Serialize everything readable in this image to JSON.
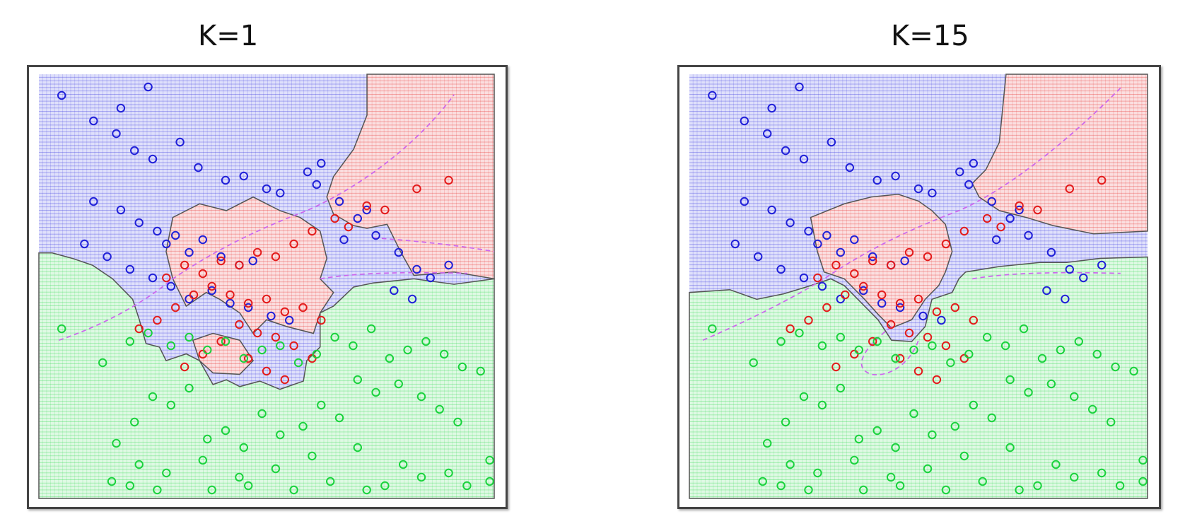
{
  "colors": {
    "blue": "#1f1fd8",
    "red": "#e31a1a",
    "green": "#19d23c",
    "blue_fill": "#dfe0fb",
    "red_fill": "#fbdfe0",
    "green_fill": "#dff9e4",
    "boundary": "#555555",
    "bayes": "#cc66ee"
  },
  "chart_data": [
    {
      "type": "scatter",
      "title": "K=1",
      "xlim": [
        0,
        1
      ],
      "ylim": [
        0,
        1
      ],
      "classes": [
        "blue",
        "red",
        "green"
      ],
      "series": [
        {
          "class": "blue",
          "x": [
            0.05,
            0.18,
            0.24,
            0.12,
            0.17,
            0.21,
            0.25,
            0.31,
            0.35,
            0.41,
            0.45,
            0.5,
            0.53,
            0.59,
            0.61,
            0.62,
            0.66,
            0.7,
            0.72,
            0.12,
            0.18,
            0.22,
            0.26,
            0.28,
            0.3,
            0.33,
            0.36,
            0.4,
            0.44,
            0.47,
            0.1,
            0.15,
            0.2,
            0.25,
            0.29,
            0.33,
            0.38,
            0.42,
            0.46,
            0.51,
            0.55,
            0.67,
            0.74,
            0.79,
            0.83,
            0.86,
            0.9,
            0.78,
            0.82
          ],
          "y": [
            0.95,
            0.92,
            0.97,
            0.89,
            0.86,
            0.82,
            0.8,
            0.84,
            0.78,
            0.75,
            0.76,
            0.73,
            0.72,
            0.77,
            0.74,
            0.79,
            0.7,
            0.66,
            0.68,
            0.7,
            0.68,
            0.65,
            0.63,
            0.6,
            0.62,
            0.58,
            0.61,
            0.57,
            0.55,
            0.56,
            0.6,
            0.57,
            0.54,
            0.52,
            0.5,
            0.47,
            0.49,
            0.46,
            0.45,
            0.43,
            0.42,
            0.61,
            0.62,
            0.58,
            0.54,
            0.52,
            0.55,
            0.49,
            0.47
          ]
        },
        {
          "class": "red",
          "x": [
            0.9,
            0.83,
            0.76,
            0.72,
            0.68,
            0.65,
            0.6,
            0.56,
            0.52,
            0.48,
            0.44,
            0.4,
            0.36,
            0.32,
            0.28,
            0.38,
            0.42,
            0.46,
            0.5,
            0.54,
            0.58,
            0.62,
            0.34,
            0.3,
            0.26,
            0.22,
            0.44,
            0.48,
            0.52,
            0.56,
            0.6,
            0.4,
            0.36,
            0.32,
            0.46,
            0.5,
            0.54
          ],
          "y": [
            0.75,
            0.73,
            0.68,
            0.69,
            0.64,
            0.66,
            0.63,
            0.6,
            0.57,
            0.58,
            0.55,
            0.56,
            0.53,
            0.55,
            0.52,
            0.5,
            0.48,
            0.46,
            0.47,
            0.44,
            0.45,
            0.42,
            0.48,
            0.45,
            0.42,
            0.4,
            0.41,
            0.39,
            0.38,
            0.36,
            0.33,
            0.37,
            0.34,
            0.31,
            0.33,
            0.3,
            0.28
          ]
        },
        {
          "class": "green",
          "x": [
            0.05,
            0.14,
            0.2,
            0.24,
            0.29,
            0.33,
            0.37,
            0.41,
            0.45,
            0.49,
            0.53,
            0.57,
            0.61,
            0.65,
            0.69,
            0.73,
            0.77,
            0.81,
            0.85,
            0.89,
            0.93,
            0.97,
            0.7,
            0.74,
            0.79,
            0.84,
            0.88,
            0.92,
            0.62,
            0.66,
            0.58,
            0.53,
            0.49,
            0.45,
            0.41,
            0.37,
            0.33,
            0.29,
            0.25,
            0.21,
            0.17,
            0.22,
            0.28,
            0.36,
            0.44,
            0.52,
            0.6,
            0.7,
            0.8,
            0.9,
            0.99,
            0.99,
            0.16,
            0.2,
            0.26,
            0.38,
            0.46,
            0.56,
            0.64,
            0.72,
            0.76,
            0.84,
            0.94
          ],
          "y": [
            0.4,
            0.32,
            0.37,
            0.39,
            0.36,
            0.38,
            0.35,
            0.37,
            0.33,
            0.35,
            0.36,
            0.32,
            0.34,
            0.38,
            0.36,
            0.4,
            0.33,
            0.35,
            0.37,
            0.34,
            0.31,
            0.3,
            0.28,
            0.25,
            0.27,
            0.24,
            0.21,
            0.18,
            0.22,
            0.19,
            0.17,
            0.15,
            0.2,
            0.12,
            0.16,
            0.14,
            0.26,
            0.22,
            0.24,
            0.18,
            0.13,
            0.08,
            0.06,
            0.09,
            0.05,
            0.07,
            0.1,
            0.12,
            0.08,
            0.06,
            0.09,
            0.04,
            0.04,
            0.03,
            0.02,
            0.02,
            0.03,
            0.02,
            0.04,
            0.02,
            0.03,
            0.05,
            0.03
          ]
        }
      ]
    },
    {
      "type": "scatter",
      "title": "K=15",
      "xlim": [
        0,
        1
      ],
      "ylim": [
        0,
        1
      ],
      "classes": [
        "blue",
        "red",
        "green"
      ],
      "series": [
        {
          "class": "blue",
          "x": [
            0.05,
            0.18,
            0.24,
            0.12,
            0.17,
            0.21,
            0.25,
            0.31,
            0.35,
            0.41,
            0.45,
            0.5,
            0.53,
            0.59,
            0.61,
            0.62,
            0.66,
            0.7,
            0.72,
            0.12,
            0.18,
            0.22,
            0.26,
            0.28,
            0.3,
            0.33,
            0.36,
            0.4,
            0.44,
            0.47,
            0.1,
            0.15,
            0.2,
            0.25,
            0.29,
            0.33,
            0.38,
            0.42,
            0.46,
            0.51,
            0.55,
            0.67,
            0.74,
            0.79,
            0.83,
            0.86,
            0.9,
            0.78,
            0.82
          ],
          "y": [
            0.95,
            0.92,
            0.97,
            0.89,
            0.86,
            0.82,
            0.8,
            0.84,
            0.78,
            0.75,
            0.76,
            0.73,
            0.72,
            0.77,
            0.74,
            0.79,
            0.7,
            0.66,
            0.68,
            0.7,
            0.68,
            0.65,
            0.63,
            0.6,
            0.62,
            0.58,
            0.61,
            0.57,
            0.55,
            0.56,
            0.6,
            0.57,
            0.54,
            0.52,
            0.5,
            0.47,
            0.49,
            0.46,
            0.45,
            0.43,
            0.42,
            0.61,
            0.62,
            0.58,
            0.54,
            0.52,
            0.55,
            0.49,
            0.47
          ]
        },
        {
          "class": "red",
          "x": [
            0.9,
            0.83,
            0.76,
            0.72,
            0.68,
            0.65,
            0.6,
            0.56,
            0.52,
            0.48,
            0.44,
            0.4,
            0.36,
            0.32,
            0.28,
            0.38,
            0.42,
            0.46,
            0.5,
            0.54,
            0.58,
            0.62,
            0.34,
            0.3,
            0.26,
            0.22,
            0.44,
            0.48,
            0.52,
            0.56,
            0.6,
            0.4,
            0.36,
            0.32,
            0.46,
            0.5,
            0.54
          ],
          "y": [
            0.75,
            0.73,
            0.68,
            0.69,
            0.64,
            0.66,
            0.63,
            0.6,
            0.57,
            0.58,
            0.55,
            0.56,
            0.53,
            0.55,
            0.52,
            0.5,
            0.48,
            0.46,
            0.47,
            0.44,
            0.45,
            0.42,
            0.48,
            0.45,
            0.42,
            0.4,
            0.41,
            0.39,
            0.38,
            0.36,
            0.33,
            0.37,
            0.34,
            0.31,
            0.33,
            0.3,
            0.28
          ]
        },
        {
          "class": "green",
          "x": [
            0.05,
            0.14,
            0.2,
            0.24,
            0.29,
            0.33,
            0.37,
            0.41,
            0.45,
            0.49,
            0.53,
            0.57,
            0.61,
            0.65,
            0.69,
            0.73,
            0.77,
            0.81,
            0.85,
            0.89,
            0.93,
            0.97,
            0.7,
            0.74,
            0.79,
            0.84,
            0.88,
            0.92,
            0.62,
            0.66,
            0.58,
            0.53,
            0.49,
            0.45,
            0.41,
            0.37,
            0.33,
            0.29,
            0.25,
            0.21,
            0.17,
            0.22,
            0.28,
            0.36,
            0.44,
            0.52,
            0.6,
            0.7,
            0.8,
            0.9,
            0.99,
            0.99,
            0.16,
            0.2,
            0.26,
            0.38,
            0.46,
            0.56,
            0.64,
            0.72,
            0.76,
            0.84,
            0.94
          ],
          "y": [
            0.4,
            0.32,
            0.37,
            0.39,
            0.36,
            0.38,
            0.35,
            0.37,
            0.33,
            0.35,
            0.36,
            0.32,
            0.34,
            0.38,
            0.36,
            0.4,
            0.33,
            0.35,
            0.37,
            0.34,
            0.31,
            0.3,
            0.28,
            0.25,
            0.27,
            0.24,
            0.21,
            0.18,
            0.22,
            0.19,
            0.17,
            0.15,
            0.2,
            0.12,
            0.16,
            0.14,
            0.26,
            0.22,
            0.24,
            0.18,
            0.13,
            0.08,
            0.06,
            0.09,
            0.05,
            0.07,
            0.1,
            0.12,
            0.08,
            0.06,
            0.09,
            0.04,
            0.04,
            0.03,
            0.02,
            0.02,
            0.03,
            0.02,
            0.04,
            0.02,
            0.03,
            0.05,
            0.03
          ]
        }
      ]
    }
  ]
}
